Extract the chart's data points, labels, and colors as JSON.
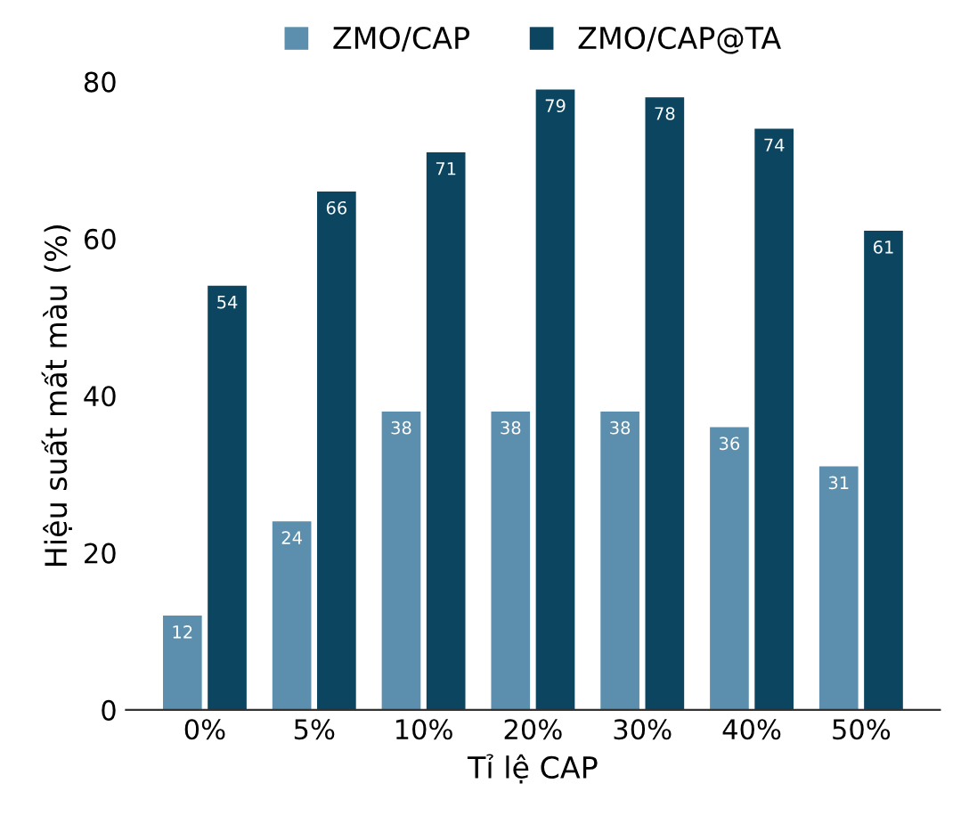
{
  "chart_data": {
    "type": "bar",
    "xlabel": "Tỉ lệ CAP",
    "ylabel": "Hiệu suất mất màu (%)",
    "categories": [
      "0%",
      "5%",
      "10%",
      "20%",
      "30%",
      "40%",
      "50%"
    ],
    "series": [
      {
        "name": "ZMO/CAP",
        "color": "#5b8fad",
        "values": [
          12,
          24,
          38,
          38,
          38,
          36,
          31
        ]
      },
      {
        "name": "ZMO/CAP@TA",
        "color": "#0b4560",
        "values": [
          54,
          66,
          71,
          79,
          78,
          74,
          61
        ]
      }
    ],
    "ylim": [
      0,
      80
    ],
    "yticks": [
      0,
      20,
      40,
      60,
      80
    ],
    "grid": false,
    "legend": "top",
    "data_labels": true
  }
}
